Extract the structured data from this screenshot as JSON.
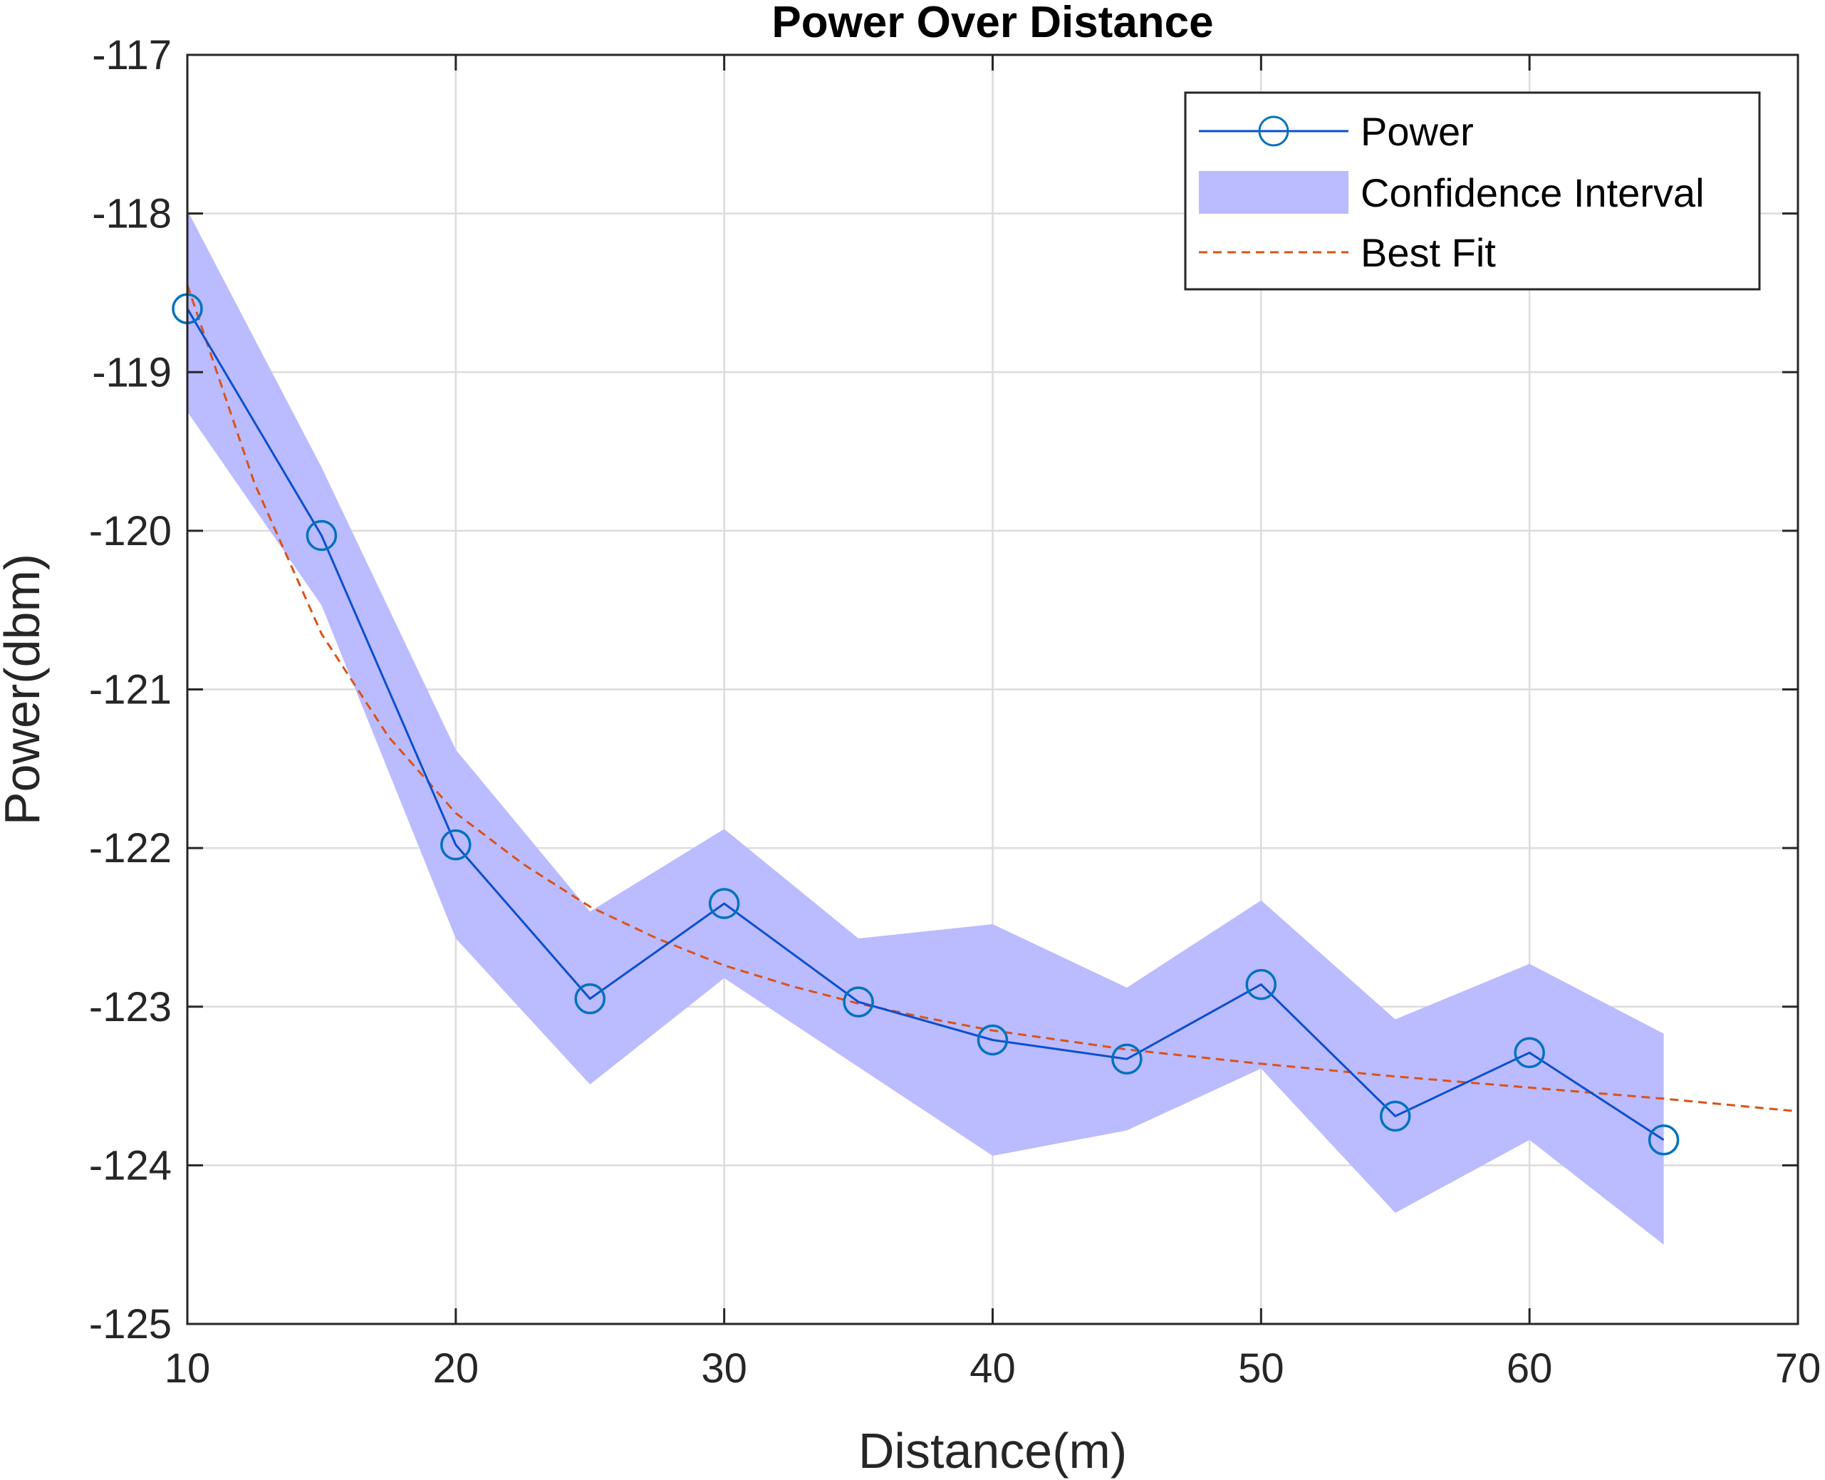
{
  "chart_data": {
    "type": "line",
    "title": "Power Over Distance",
    "xlabel": "Distance(m)",
    "ylabel": "Power(dbm)",
    "xlim": [
      10,
      70
    ],
    "ylim": [
      -125,
      -117
    ],
    "x_ticks": [
      10,
      20,
      30,
      40,
      50,
      60,
      70
    ],
    "y_ticks": [
      -117,
      -118,
      -119,
      -120,
      -121,
      -122,
      -123,
      -124,
      -125
    ],
    "grid": true,
    "legend_position": "top-right",
    "series": [
      {
        "name": "Power",
        "kind": "line-with-circle-markers",
        "color": "#0a4fcf",
        "marker_color": "#0072bd",
        "x": [
          10,
          15,
          20,
          25,
          30,
          35,
          40,
          45,
          50,
          55,
          60,
          65
        ],
        "y": [
          -118.6,
          -120.03,
          -121.98,
          -122.95,
          -122.35,
          -122.97,
          -123.21,
          -123.33,
          -122.86,
          -123.69,
          -123.29,
          -123.84
        ]
      },
      {
        "name": "Confidence Interval",
        "kind": "band",
        "color": "#bbbbff",
        "x": [
          10,
          15,
          20,
          25,
          30,
          35,
          40,
          45,
          50,
          55,
          60,
          65
        ],
        "upper": [
          -117.98,
          -119.6,
          -121.38,
          -122.4,
          -121.88,
          -122.57,
          -122.48,
          -122.88,
          -122.33,
          -123.08,
          -122.73,
          -123.17
        ],
        "lower": [
          -119.25,
          -120.47,
          -122.57,
          -123.49,
          -122.82,
          -123.38,
          -123.94,
          -123.78,
          -123.39,
          -124.3,
          -123.84,
          -124.5
        ]
      },
      {
        "name": "Best Fit",
        "kind": "dashed-line",
        "color": "#d95319",
        "x": [
          10,
          12.5,
          15,
          17.5,
          20,
          22.5,
          25,
          27.5,
          30,
          32.5,
          35,
          37.5,
          40,
          45,
          50,
          55,
          60,
          65,
          70
        ],
        "y": [
          -118.45,
          -119.7,
          -120.65,
          -121.3,
          -121.78,
          -122.1,
          -122.37,
          -122.57,
          -122.74,
          -122.87,
          -122.98,
          -123.07,
          -123.15,
          -123.27,
          -123.36,
          -123.44,
          -123.51,
          -123.58,
          -123.66
        ]
      }
    ]
  }
}
